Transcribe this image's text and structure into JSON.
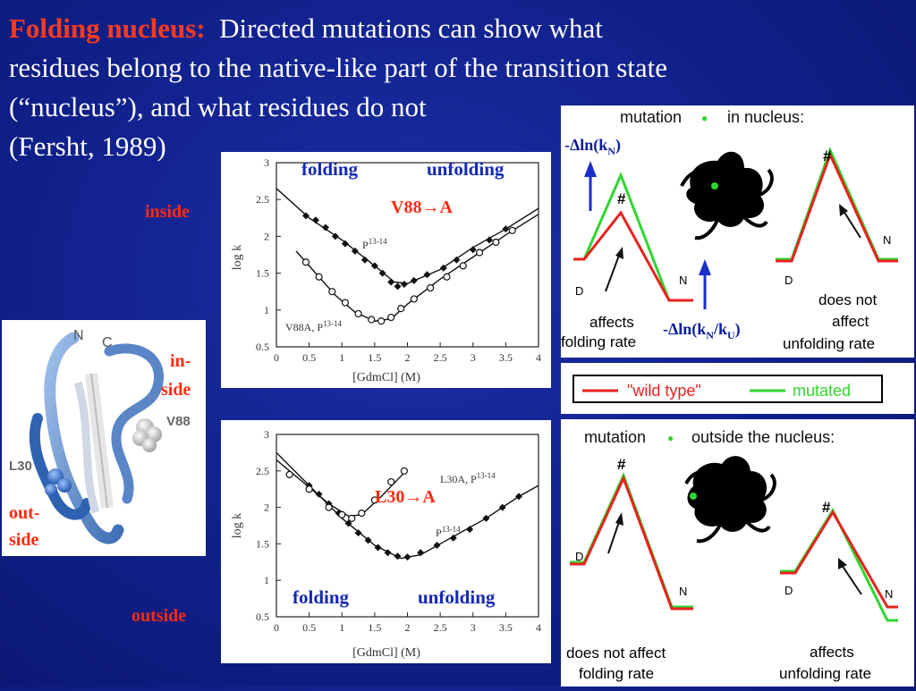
{
  "title": {
    "heading": "Folding nucleus:",
    "line1": "Directed mutations can show what",
    "line2": "residues belong to the native-like part of the transition state",
    "line3": "(“nucleus”), and what residues do not",
    "line4": "(Fersht, 1989)"
  },
  "labels": {
    "inside": "inside",
    "outside": "outside",
    "in_side_1": "in-",
    "in_side_2": "side",
    "out_side_1": "out-",
    "out_side_2": "side"
  },
  "protein": {
    "n_label": "N",
    "c_label": "C",
    "v88_label": "V88",
    "l30_label": "L30"
  },
  "chart_data": [
    {
      "type": "scatter",
      "title": "V88→A",
      "xlabel": "[GdmCl] (M)",
      "ylabel": "log k",
      "xlim": [
        0,
        4
      ],
      "ylim": [
        0.5,
        3
      ],
      "xticks": [
        "0",
        "0.5",
        "1",
        "1.5",
        "2",
        "2.5",
        "3",
        "3.5",
        "4"
      ],
      "yticks": [
        "0.5",
        "1",
        "1.5",
        "2",
        "2.5",
        "3"
      ],
      "annot_folding": "folding",
      "annot_unfolding": "unfolding",
      "series": [
        {
          "name": "P13-14",
          "label_main": "P",
          "label_sup": "13-14",
          "marker": "diamond",
          "points": [
            [
              0.45,
              2.28
            ],
            [
              0.6,
              2.22
            ],
            [
              0.75,
              2.12
            ],
            [
              0.9,
              2.0
            ],
            [
              1.05,
              1.9
            ],
            [
              1.2,
              1.8
            ],
            [
              1.35,
              1.68
            ],
            [
              1.5,
              1.6
            ],
            [
              1.62,
              1.5
            ],
            [
              1.75,
              1.38
            ],
            [
              1.85,
              1.32
            ],
            [
              1.95,
              1.35
            ],
            [
              2.1,
              1.4
            ],
            [
              2.3,
              1.48
            ],
            [
              2.55,
              1.57
            ],
            [
              2.75,
              1.68
            ],
            [
              3.0,
              1.82
            ],
            [
              3.25,
              1.95
            ],
            [
              3.5,
              2.1
            ]
          ],
          "fit": [
            [
              0.0,
              2.65
            ],
            [
              0.5,
              2.25
            ],
            [
              1.0,
              1.95
            ],
            [
              1.5,
              1.6
            ],
            [
              1.8,
              1.38
            ],
            [
              2.0,
              1.36
            ],
            [
              2.5,
              1.55
            ],
            [
              3.0,
              1.85
            ],
            [
              3.5,
              2.1
            ],
            [
              4.0,
              2.38
            ]
          ]
        },
        {
          "name": "V88A, P13-14",
          "label_main": "V88A, P",
          "label_sup": "13-14",
          "marker": "circle",
          "points": [
            [
              0.45,
              1.65
            ],
            [
              0.65,
              1.45
            ],
            [
              0.85,
              1.25
            ],
            [
              1.05,
              1.1
            ],
            [
              1.25,
              0.95
            ],
            [
              1.45,
              0.87
            ],
            [
              1.6,
              0.85
            ],
            [
              1.75,
              0.9
            ],
            [
              1.9,
              1.02
            ],
            [
              2.1,
              1.15
            ],
            [
              2.35,
              1.3
            ],
            [
              2.6,
              1.45
            ],
            [
              2.85,
              1.6
            ],
            [
              3.1,
              1.78
            ],
            [
              3.35,
              1.92
            ],
            [
              3.6,
              2.08
            ]
          ],
          "fit": [
            [
              0.3,
              1.8
            ],
            [
              0.6,
              1.5
            ],
            [
              0.9,
              1.2
            ],
            [
              1.2,
              0.97
            ],
            [
              1.5,
              0.85
            ],
            [
              1.75,
              0.88
            ],
            [
              2.0,
              1.08
            ],
            [
              2.5,
              1.42
            ],
            [
              3.0,
              1.72
            ],
            [
              3.5,
              2.02
            ],
            [
              4.0,
              2.3
            ]
          ]
        }
      ]
    },
    {
      "type": "scatter",
      "title": "L30→A",
      "xlabel": "[GdmCl] (M)",
      "ylabel": "log k",
      "xlim": [
        0,
        4
      ],
      "ylim": [
        0.5,
        3
      ],
      "xticks": [
        "0",
        "0.5",
        "1",
        "1.5",
        "2",
        "2.5",
        "3",
        "3.5",
        "4"
      ],
      "yticks": [
        "0.5",
        "1",
        "1.5",
        "2",
        "2.5",
        "3"
      ],
      "annot_folding": "folding",
      "annot_unfolding": "unfolding",
      "series": [
        {
          "name": "P13-14",
          "label_main": "P",
          "label_sup": "13-14",
          "marker": "diamond",
          "points": [
            [
              0.5,
              2.3
            ],
            [
              0.65,
              2.18
            ],
            [
              0.8,
              2.05
            ],
            [
              0.95,
              1.92
            ],
            [
              1.1,
              1.78
            ],
            [
              1.25,
              1.65
            ],
            [
              1.4,
              1.55
            ],
            [
              1.55,
              1.45
            ],
            [
              1.7,
              1.38
            ],
            [
              1.85,
              1.33
            ],
            [
              2.0,
              1.32
            ],
            [
              2.2,
              1.38
            ],
            [
              2.45,
              1.48
            ],
            [
              2.7,
              1.58
            ],
            [
              2.95,
              1.7
            ],
            [
              3.2,
              1.85
            ],
            [
              3.45,
              2.0
            ],
            [
              3.7,
              2.15
            ]
          ],
          "fit": [
            [
              0.0,
              2.75
            ],
            [
              0.5,
              2.3
            ],
            [
              1.0,
              1.85
            ],
            [
              1.5,
              1.48
            ],
            [
              1.9,
              1.3
            ],
            [
              2.2,
              1.35
            ],
            [
              2.7,
              1.6
            ],
            [
              3.2,
              1.85
            ],
            [
              3.7,
              2.15
            ],
            [
              4.0,
              2.3
            ]
          ]
        },
        {
          "name": "L30A, P13-14",
          "label_main": "L30A, P",
          "label_sup": "13-14",
          "marker": "circle",
          "points": [
            [
              0.2,
              2.45
            ],
            [
              0.5,
              2.25
            ],
            [
              0.8,
              2.0
            ],
            [
              1.0,
              1.9
            ],
            [
              1.15,
              1.85
            ],
            [
              1.3,
              1.92
            ],
            [
              1.5,
              2.1
            ],
            [
              1.75,
              2.35
            ],
            [
              1.95,
              2.5
            ]
          ],
          "fit": [
            [
              0.0,
              2.65
            ],
            [
              0.4,
              2.35
            ],
            [
              0.8,
              2.05
            ],
            [
              1.1,
              1.88
            ],
            [
              1.3,
              1.9
            ],
            [
              1.6,
              2.15
            ],
            [
              2.0,
              2.52
            ]
          ]
        }
      ]
    }
  ],
  "right_top": {
    "header": "mutation",
    "header_bullet": "●",
    "header_rest": "in nucleus:",
    "hash": "#",
    "d": "D",
    "n": "N",
    "left_caption_1": "affects",
    "left_caption_2": "folding rate",
    "right_caption_1": "does not",
    "right_caption_2": "affect",
    "right_caption_3": "unfolding rate",
    "kn_label_prefix": "-Δln(k",
    "kn_label_sub": "N",
    "kn_label_suffix": ")",
    "knku_label_prefix": "-Δln(k",
    "knku_label_sub1": "N",
    "knku_label_mid": "/k",
    "knku_label_sub2": "U",
    "knku_label_suffix": ")"
  },
  "legend": {
    "wild": "\"wild type\"",
    "mutated": "mutated",
    "wild_color": "#e8231f",
    "mutated_color": "#2fd62f"
  },
  "right_bottom": {
    "header": "mutation",
    "header_bullet": "●",
    "header_rest": "outside the nucleus:",
    "hash": "#",
    "d": "D",
    "n": "N",
    "left_caption_1": "does not affect",
    "left_caption_2": "folding rate",
    "right_caption_1": "affects",
    "right_caption_2": "unfolding rate"
  }
}
